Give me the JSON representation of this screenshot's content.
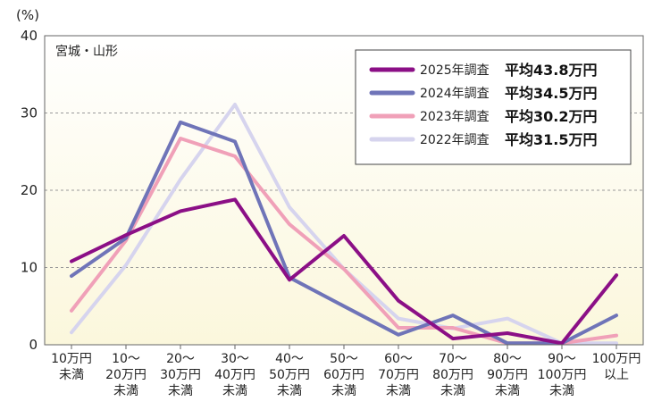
{
  "chart_data": {
    "type": "line",
    "region_label": "宮城・山形",
    "y_unit": "(%)",
    "ylim": [
      0,
      40
    ],
    "yticks": [
      0,
      10,
      20,
      30,
      40
    ],
    "grid": true,
    "legend_position": "top-right",
    "categories": [
      [
        "10万円",
        "未満"
      ],
      [
        "10～",
        "20万円",
        "未満"
      ],
      [
        "20～",
        "30万円",
        "未満"
      ],
      [
        "30～",
        "40万円",
        "未満"
      ],
      [
        "40～",
        "50万円",
        "未満"
      ],
      [
        "50～",
        "60万円",
        "未満"
      ],
      [
        "60～",
        "70万円",
        "未満"
      ],
      [
        "70～",
        "80万円",
        "未満"
      ],
      [
        "80～",
        "90万円",
        "未満"
      ],
      [
        "90～",
        "100万円",
        "未満"
      ],
      [
        "100万円",
        "以上"
      ]
    ],
    "series": [
      {
        "name": "2025年調査",
        "average_label": "平均43.8万円",
        "color": "#8b0f86",
        "values": [
          10.8,
          14.2,
          17.3,
          18.8,
          8.4,
          14.1,
          5.7,
          0.8,
          1.5,
          0.2,
          9.0
        ]
      },
      {
        "name": "2024年調査",
        "average_label": "平均34.5万円",
        "color": "#6f74b8",
        "values": [
          8.9,
          13.8,
          28.8,
          26.3,
          8.7,
          5.0,
          1.3,
          3.8,
          0.2,
          0.2,
          3.8
        ]
      },
      {
        "name": "2023年調査",
        "average_label": "平均30.2万円",
        "color": "#f0a0b8",
        "values": [
          4.4,
          13.5,
          26.7,
          24.4,
          15.6,
          9.8,
          2.2,
          2.2,
          0.2,
          0.2,
          1.2
        ]
      },
      {
        "name": "2022年調査",
        "average_label": "平均31.5万円",
        "color": "#d6d4ee",
        "values": [
          1.6,
          10.3,
          21.4,
          31.1,
          17.8,
          9.8,
          3.4,
          2.1,
          3.4,
          0.2,
          0.2
        ]
      }
    ]
  }
}
